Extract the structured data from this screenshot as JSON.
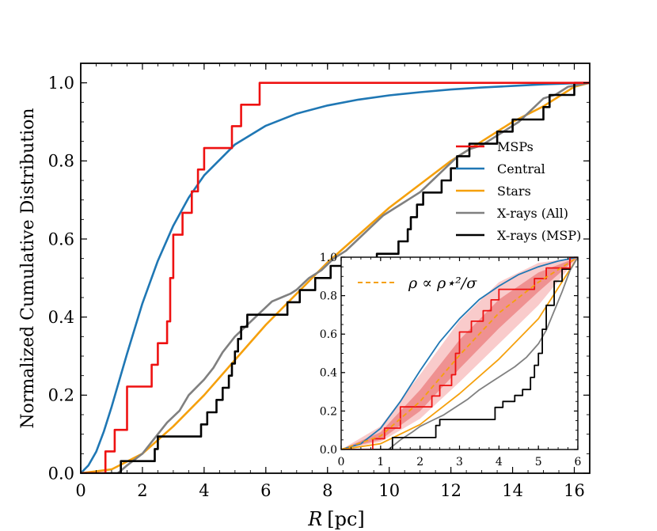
{
  "chart_data": [
    {
      "type": "line",
      "title": "",
      "xlabel_var": "R",
      "xlabel_unit": "[pc]",
      "ylabel": "Normalized Cumulative Distribution",
      "xlim": [
        0,
        16.5
      ],
      "ylim": [
        0,
        1.05
      ],
      "xticks": [
        0,
        2,
        4,
        6,
        8,
        10,
        12,
        14,
        16
      ],
      "xtick_labels": [
        "0",
        "2",
        "4",
        "6",
        "8",
        "10",
        "12",
        "14",
        "16"
      ],
      "yticks": [
        0,
        0.2,
        0.4,
        0.6,
        0.8,
        1.0
      ],
      "ytick_labels": [
        "0.0",
        "0.2",
        "0.4",
        "0.6",
        "0.8",
        "1.0"
      ],
      "legend_position": "center-right",
      "series": [
        {
          "name": "MSPs",
          "color": "#ee1111",
          "kind": "step",
          "x": [
            0.8,
            1.1,
            1.5,
            2.3,
            2.5,
            2.8,
            2.9,
            3.0,
            3.3,
            3.6,
            3.8,
            4.0,
            4.9,
            5.2,
            5.8,
            16.5
          ],
          "y": [
            0.056,
            0.111,
            0.222,
            0.278,
            0.333,
            0.389,
            0.5,
            0.611,
            0.667,
            0.722,
            0.778,
            0.833,
            0.889,
            0.944,
            1.0,
            1.0
          ]
        },
        {
          "name": "Central",
          "color": "#1f77b4",
          "kind": "smooth",
          "x": [
            0,
            0.25,
            0.5,
            0.75,
            1,
            1.25,
            1.5,
            2,
            2.5,
            3,
            3.5,
            4,
            5,
            6,
            7,
            8,
            9,
            10,
            11,
            12,
            13,
            14,
            15,
            16,
            16.5
          ],
          "y": [
            0,
            0.02,
            0.055,
            0.107,
            0.17,
            0.238,
            0.306,
            0.435,
            0.544,
            0.634,
            0.706,
            0.763,
            0.842,
            0.89,
            0.921,
            0.942,
            0.957,
            0.968,
            0.976,
            0.983,
            0.988,
            0.992,
            0.996,
            0.999,
            1.0
          ]
        },
        {
          "name": "Stars",
          "color": "#f5a00c",
          "kind": "smooth",
          "x": [
            0,
            1,
            2,
            3,
            4,
            5,
            6,
            7,
            8,
            9,
            10,
            11,
            12,
            13,
            14,
            15,
            16,
            16.5
          ],
          "y": [
            0,
            0.01,
            0.05,
            0.12,
            0.2,
            0.29,
            0.38,
            0.46,
            0.54,
            0.61,
            0.68,
            0.74,
            0.8,
            0.85,
            0.9,
            0.94,
            0.99,
            1.0
          ]
        },
        {
          "name": "X-rays (All)",
          "color": "#808080",
          "kind": "jagged",
          "x": [
            1.2,
            1.5,
            2.0,
            2.4,
            2.8,
            3.2,
            3.5,
            4.0,
            4.3,
            4.6,
            5.0,
            5.4,
            5.8,
            6.2,
            6.5,
            6.8,
            7.0,
            7.4,
            7.8,
            8.2,
            8.6,
            9.0,
            9.4,
            9.8,
            10.2,
            10.6,
            11.0,
            11.4,
            11.8,
            12.2,
            12.6,
            13.0,
            13.4,
            13.8,
            14.2,
            14.6,
            15.0,
            15.4,
            15.8,
            16.5
          ],
          "y": [
            0.0,
            0.02,
            0.05,
            0.09,
            0.13,
            0.16,
            0.2,
            0.24,
            0.27,
            0.31,
            0.35,
            0.38,
            0.41,
            0.44,
            0.45,
            0.46,
            0.47,
            0.5,
            0.52,
            0.55,
            0.57,
            0.6,
            0.63,
            0.66,
            0.68,
            0.7,
            0.72,
            0.75,
            0.78,
            0.81,
            0.83,
            0.84,
            0.86,
            0.88,
            0.9,
            0.93,
            0.96,
            0.97,
            0.99,
            1.0
          ]
        },
        {
          "name": "X-rays (MSP)",
          "color": "#000000",
          "kind": "step",
          "x": [
            1.2,
            1.3,
            2.4,
            2.5,
            3.9,
            4.1,
            4.4,
            4.6,
            4.8,
            4.9,
            5.0,
            5.1,
            5.2,
            5.4,
            6.7,
            7.1,
            7.6,
            8.1,
            9.6,
            10.3,
            10.6,
            10.7,
            10.9,
            11.1,
            11.7,
            12.0,
            12.2,
            12.6,
            13.5,
            14.0,
            15.0,
            15.2,
            16.0,
            16.5
          ],
          "y": [
            0.0,
            0.031,
            0.062,
            0.094,
            0.125,
            0.156,
            0.188,
            0.219,
            0.25,
            0.281,
            0.312,
            0.344,
            0.375,
            0.406,
            0.438,
            0.469,
            0.5,
            0.531,
            0.562,
            0.594,
            0.625,
            0.656,
            0.688,
            0.719,
            0.75,
            0.781,
            0.812,
            0.844,
            0.875,
            0.906,
            0.938,
            0.969,
            1.0,
            1.0
          ]
        }
      ]
    },
    {
      "type": "line",
      "inset": true,
      "xlim": [
        0,
        6
      ],
      "ylim": [
        0,
        1.0
      ],
      "xticks": [
        0,
        1,
        2,
        3,
        4,
        5,
        6
      ],
      "xtick_labels": [
        "0",
        "1",
        "2",
        "3",
        "4",
        "5",
        "6"
      ],
      "yticks": [
        0,
        0.2,
        0.4,
        0.6,
        0.8,
        1.0
      ],
      "ytick_labels": [
        "0.0",
        "0.2",
        "0.4",
        "0.6",
        "0.8",
        "1.0"
      ],
      "legend_label": "ρ ∝ ρ⋆²/σ",
      "series": [
        {
          "name": "Central",
          "color": "#1f77b4",
          "kind": "smooth",
          "x": [
            0,
            0.5,
            1,
            1.5,
            2,
            2.5,
            3,
            3.5,
            4,
            4.5,
            5,
            5.5,
            6
          ],
          "y": [
            0,
            0.03,
            0.11,
            0.25,
            0.41,
            0.56,
            0.68,
            0.78,
            0.85,
            0.91,
            0.95,
            0.98,
            1.0
          ]
        },
        {
          "name": "Stars",
          "color": "#f5a00c",
          "kind": "smooth",
          "x": [
            0,
            1,
            2,
            3,
            4,
            5,
            6
          ],
          "y": [
            0,
            0.03,
            0.13,
            0.29,
            0.47,
            0.68,
            1.0
          ]
        },
        {
          "name": "band_outer_upper",
          "color": "#f4a0a0",
          "kind": "smooth",
          "x": [
            0,
            1,
            2,
            3,
            4,
            5,
            6
          ],
          "y": [
            0,
            0.12,
            0.39,
            0.67,
            0.87,
            0.97,
            1.0
          ]
        },
        {
          "name": "band_outer_lower",
          "color": "#f4a0a0",
          "kind": "smooth",
          "x": [
            0,
            1,
            2,
            3,
            4,
            5,
            6
          ],
          "y": [
            0,
            0.04,
            0.16,
            0.35,
            0.55,
            0.75,
            1.0
          ]
        },
        {
          "name": "band_inner_upper",
          "color": "#e86a6a",
          "kind": "smooth",
          "x": [
            0,
            1,
            2,
            3,
            4,
            5,
            6
          ],
          "y": [
            0,
            0.09,
            0.31,
            0.57,
            0.78,
            0.92,
            1.0
          ]
        },
        {
          "name": "band_inner_lower",
          "color": "#e86a6a",
          "kind": "smooth",
          "x": [
            0,
            1,
            2,
            3,
            4,
            5,
            6
          ],
          "y": [
            0,
            0.05,
            0.2,
            0.42,
            0.63,
            0.82,
            1.0
          ]
        },
        {
          "name": "ρ ∝ ρ⋆²/σ",
          "color": "#f5a00c",
          "kind": "dashed",
          "x": [
            0,
            1,
            2,
            3,
            4,
            5,
            6
          ],
          "y": [
            0,
            0.07,
            0.25,
            0.49,
            0.71,
            0.87,
            1.0
          ]
        },
        {
          "name": "MSPs",
          "color": "#ee1111",
          "kind": "step",
          "x": [
            0.8,
            1.1,
            1.5,
            2.3,
            2.5,
            2.8,
            2.9,
            3.0,
            3.3,
            3.6,
            3.8,
            4.0,
            4.9,
            5.2,
            5.8,
            6.0
          ],
          "y": [
            0.056,
            0.111,
            0.222,
            0.278,
            0.333,
            0.389,
            0.5,
            0.611,
            0.667,
            0.722,
            0.778,
            0.833,
            0.889,
            0.944,
            1.0,
            1.0
          ]
        },
        {
          "name": "X-rays (All)",
          "color": "#808080",
          "kind": "jagged",
          "x": [
            1.2,
            1.5,
            1.8,
            2.0,
            2.3,
            2.6,
            2.9,
            3.2,
            3.5,
            3.8,
            4.1,
            4.4,
            4.7,
            5.0,
            5.2,
            5.4,
            5.6,
            5.8,
            6.0
          ],
          "y": [
            0.0,
            0.05,
            0.09,
            0.12,
            0.15,
            0.18,
            0.22,
            0.26,
            0.31,
            0.35,
            0.39,
            0.43,
            0.48,
            0.55,
            0.62,
            0.72,
            0.82,
            0.93,
            1.0
          ]
        },
        {
          "name": "X-rays (MSP)",
          "color": "#000000",
          "kind": "step",
          "x": [
            1.2,
            1.3,
            2.4,
            2.5,
            3.9,
            4.1,
            4.4,
            4.6,
            4.8,
            4.9,
            5.0,
            5.1,
            5.2,
            5.4,
            5.6,
            5.8,
            6.0
          ],
          "y": [
            0.0,
            0.062,
            0.125,
            0.156,
            0.219,
            0.25,
            0.281,
            0.312,
            0.375,
            0.438,
            0.5,
            0.625,
            0.75,
            0.875,
            0.938,
            1.0,
            1.0
          ]
        }
      ]
    }
  ]
}
